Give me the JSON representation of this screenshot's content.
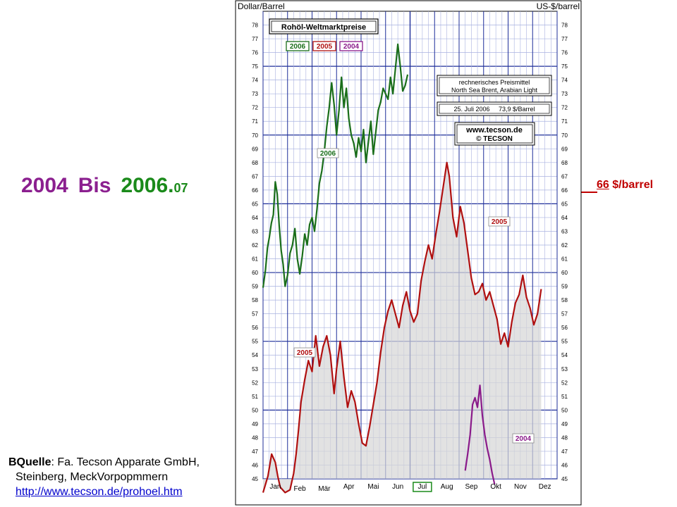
{
  "slide": {
    "title_2004": "2004",
    "title_bis": "Bis",
    "title_2006": "2006.",
    "title_2006_suffix": "07",
    "annotation_value": "66",
    "annotation_unit": " $/barrel",
    "source_label": "BQuelle",
    "source_line1": ": Fa. Tecson Apparate GmbH,",
    "source_line2": "Steinberg, MeckVorpopmmern",
    "source_url": "http://www.tecson.de/prohoel.htm"
  },
  "chart_data": {
    "type": "line",
    "title": "Rohöl-Weltmarktpreise",
    "ylabel_left": "Dollar/Barrel",
    "ylabel_right": "US-$/barrel",
    "ylim": [
      45,
      79
    ],
    "yticks": [
      45,
      46,
      47,
      48,
      49,
      50,
      51,
      52,
      53,
      54,
      55,
      56,
      57,
      58,
      59,
      60,
      61,
      62,
      63,
      64,
      65,
      66,
      67,
      68,
      69,
      70,
      71,
      72,
      73,
      74,
      75,
      76,
      77,
      78
    ],
    "months": [
      "Jan",
      "Feb",
      "Mär",
      "Apr",
      "Mai",
      "Jun",
      "Jul",
      "Aug",
      "Sep",
      "Okt",
      "Nov",
      "Dez"
    ],
    "highlighted_month": "Jul",
    "grid": true,
    "legend": [
      "2006",
      "2005",
      "2004"
    ],
    "info_box": [
      "rechnerisches Preismittel",
      "North Sea Brent, Arabian Light"
    ],
    "date_box": "25. Juli 2006     73,9 $/Barrel",
    "brand": [
      "www.tecson.de",
      "© TECSON"
    ],
    "series": [
      {
        "name": "2006",
        "color": "#1a6e1a",
        "points": [
          [
            0.0,
            58.9
          ],
          [
            0.1,
            60.2
          ],
          [
            0.18,
            61.8
          ],
          [
            0.26,
            62.6
          ],
          [
            0.34,
            63.6
          ],
          [
            0.42,
            64.2
          ],
          [
            0.5,
            66.6
          ],
          [
            0.58,
            65.7
          ],
          [
            0.66,
            63.4
          ],
          [
            0.74,
            61.6
          ],
          [
            0.82,
            60.6
          ],
          [
            0.9,
            59.0
          ],
          [
            1.0,
            59.8
          ],
          [
            1.1,
            61.4
          ],
          [
            1.2,
            62.0
          ],
          [
            1.3,
            63.2
          ],
          [
            1.4,
            61.0
          ],
          [
            1.5,
            59.9
          ],
          [
            1.6,
            61.2
          ],
          [
            1.7,
            62.8
          ],
          [
            1.8,
            62.0
          ],
          [
            1.9,
            63.5
          ],
          [
            2.0,
            64.0
          ],
          [
            2.1,
            63.0
          ],
          [
            2.2,
            64.6
          ],
          [
            2.3,
            66.5
          ],
          [
            2.4,
            67.4
          ],
          [
            2.5,
            68.8
          ],
          [
            2.6,
            70.6
          ],
          [
            2.7,
            72.0
          ],
          [
            2.8,
            73.8
          ],
          [
            2.9,
            72.2
          ],
          [
            3.0,
            70.0
          ],
          [
            3.1,
            71.8
          ],
          [
            3.2,
            74.2
          ],
          [
            3.3,
            72.0
          ],
          [
            3.4,
            73.4
          ],
          [
            3.5,
            71.2
          ],
          [
            3.6,
            70.0
          ],
          [
            3.7,
            69.4
          ],
          [
            3.8,
            68.4
          ],
          [
            3.9,
            69.8
          ],
          [
            4.0,
            68.8
          ],
          [
            4.1,
            70.4
          ],
          [
            4.2,
            68.0
          ],
          [
            4.3,
            69.5
          ],
          [
            4.4,
            71.0
          ],
          [
            4.5,
            68.6
          ],
          [
            4.6,
            70.2
          ],
          [
            4.7,
            71.8
          ],
          [
            4.8,
            72.4
          ],
          [
            4.9,
            73.4
          ],
          [
            5.0,
            73.0
          ],
          [
            5.1,
            72.6
          ],
          [
            5.2,
            74.2
          ],
          [
            5.3,
            73.0
          ],
          [
            5.4,
            74.8
          ],
          [
            5.5,
            76.6
          ],
          [
            5.6,
            75.0
          ],
          [
            5.7,
            73.2
          ],
          [
            5.8,
            73.6
          ],
          [
            5.9,
            74.4
          ]
        ]
      },
      {
        "name": "2005",
        "color": "#b01010",
        "points": [
          [
            0.0,
            44.0
          ],
          [
            0.2,
            45.2
          ],
          [
            0.35,
            46.8
          ],
          [
            0.5,
            46.2
          ],
          [
            0.6,
            45.2
          ],
          [
            0.7,
            44.4
          ],
          [
            0.9,
            44.0
          ],
          [
            1.1,
            44.2
          ],
          [
            1.25,
            45.4
          ],
          [
            1.35,
            46.8
          ],
          [
            1.45,
            48.6
          ],
          [
            1.55,
            50.6
          ],
          [
            1.7,
            52.2
          ],
          [
            1.85,
            53.6
          ],
          [
            2.0,
            52.8
          ],
          [
            2.15,
            55.4
          ],
          [
            2.3,
            53.2
          ],
          [
            2.45,
            54.6
          ],
          [
            2.6,
            55.4
          ],
          [
            2.75,
            54.0
          ],
          [
            2.9,
            51.2
          ],
          [
            3.0,
            53.0
          ],
          [
            3.15,
            55.0
          ],
          [
            3.3,
            52.4
          ],
          [
            3.45,
            50.2
          ],
          [
            3.6,
            51.4
          ],
          [
            3.75,
            50.6
          ],
          [
            3.9,
            49.0
          ],
          [
            4.05,
            47.6
          ],
          [
            4.2,
            47.4
          ],
          [
            4.35,
            48.8
          ],
          [
            4.5,
            50.4
          ],
          [
            4.65,
            52.0
          ],
          [
            4.8,
            54.2
          ],
          [
            4.95,
            56.0
          ],
          [
            5.1,
            57.2
          ],
          [
            5.25,
            58.0
          ],
          [
            5.4,
            57.0
          ],
          [
            5.55,
            56.0
          ],
          [
            5.7,
            57.6
          ],
          [
            5.85,
            58.6
          ],
          [
            6.0,
            57.2
          ],
          [
            6.15,
            56.4
          ],
          [
            6.3,
            57.0
          ],
          [
            6.45,
            59.4
          ],
          [
            6.6,
            60.8
          ],
          [
            6.75,
            62.0
          ],
          [
            6.9,
            61.0
          ],
          [
            7.05,
            62.8
          ],
          [
            7.2,
            64.4
          ],
          [
            7.35,
            66.2
          ],
          [
            7.5,
            68.0
          ],
          [
            7.6,
            67.0
          ],
          [
            7.75,
            64.0
          ],
          [
            7.9,
            62.6
          ],
          [
            8.05,
            64.8
          ],
          [
            8.2,
            63.6
          ],
          [
            8.35,
            61.6
          ],
          [
            8.5,
            59.6
          ],
          [
            8.65,
            58.4
          ],
          [
            8.8,
            58.6
          ],
          [
            8.95,
            59.2
          ],
          [
            9.1,
            58.0
          ],
          [
            9.25,
            58.6
          ],
          [
            9.4,
            57.6
          ],
          [
            9.55,
            56.6
          ],
          [
            9.7,
            54.8
          ],
          [
            9.85,
            55.6
          ],
          [
            10.0,
            54.6
          ],
          [
            10.15,
            56.4
          ],
          [
            10.3,
            57.8
          ],
          [
            10.45,
            58.4
          ],
          [
            10.6,
            59.8
          ],
          [
            10.75,
            58.2
          ],
          [
            10.9,
            57.4
          ],
          [
            11.05,
            56.2
          ],
          [
            11.2,
            57.0
          ],
          [
            11.35,
            58.8
          ]
        ]
      },
      {
        "name": "2004",
        "color": "#8a1a8a",
        "points": [
          [
            8.25,
            45.6
          ],
          [
            8.35,
            46.8
          ],
          [
            8.45,
            48.2
          ],
          [
            8.55,
            50.4
          ],
          [
            8.65,
            50.9
          ],
          [
            8.75,
            50.2
          ],
          [
            8.85,
            51.8
          ],
          [
            8.95,
            49.6
          ],
          [
            9.05,
            48.2
          ],
          [
            9.15,
            47.2
          ],
          [
            9.25,
            46.4
          ],
          [
            9.35,
            45.4
          ],
          [
            9.45,
            44.6
          ]
        ]
      }
    ]
  }
}
